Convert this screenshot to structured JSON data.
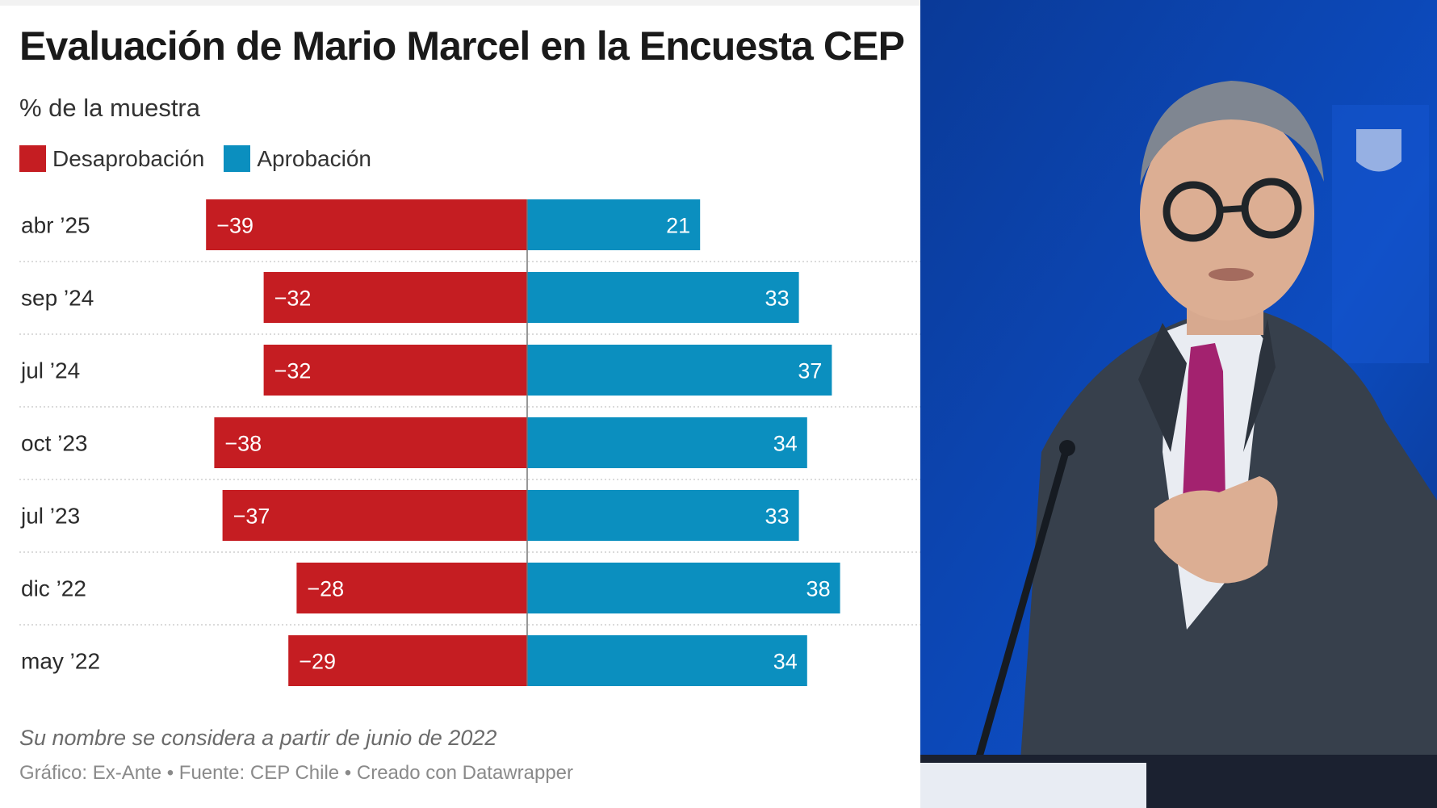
{
  "chart_data": {
    "type": "bar",
    "title": "Evaluación de Mario Marcel en la Encuesta CEP",
    "subtitle": "% de la muestra",
    "legend": [
      {
        "name": "Desaprobación",
        "color": "#c51d22"
      },
      {
        "name": "Aprobación",
        "color": "#0b8fbf"
      }
    ],
    "categories": [
      "abr ’25",
      "sep ’24",
      "jul ’24",
      "oct ’23",
      "jul ’23",
      "dic ’22",
      "may ’22"
    ],
    "series": [
      {
        "name": "Desaprobación",
        "values": [
          -39,
          -32,
          -32,
          -38,
          -37,
          -28,
          -29
        ],
        "labels": [
          "−39",
          "−32",
          "−32",
          "−38",
          "−37",
          "−28",
          "−29"
        ],
        "color": "#c51d22"
      },
      {
        "name": "Aprobación",
        "values": [
          21,
          33,
          37,
          34,
          33,
          38,
          34
        ],
        "labels": [
          "21",
          "33",
          "37",
          "34",
          "33",
          "38",
          "34"
        ],
        "color": "#0b8fbf"
      }
    ],
    "orientation": "horizontal",
    "stacking": "diverging",
    "note": "Su nombre se considera a partir de junio de 2022",
    "credits": "Gráfico: Ex-Ante • Fuente: CEP Chile • Creado con Datawrapper",
    "grid": false
  },
  "photo": {
    "icon": "person-at-podium-photo",
    "background_color": "#0a3d9e"
  }
}
